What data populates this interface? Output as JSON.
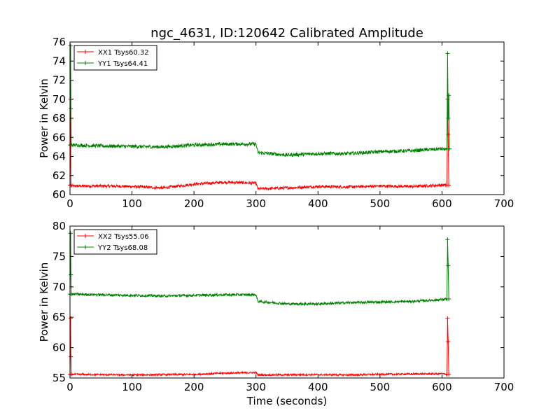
{
  "chart_data": [
    {
      "type": "line",
      "title": "ngc_4631, ID:120642 Calibrated Amplitude",
      "xlabel": "",
      "ylabel": "Power in Kelvin",
      "xlim": [
        0,
        700
      ],
      "ylim": [
        60,
        76
      ],
      "xticks": [
        0,
        100,
        200,
        300,
        400,
        500,
        600,
        700
      ],
      "yticks": [
        60,
        62,
        64,
        66,
        68,
        70,
        72,
        74,
        76
      ],
      "legend_position": "top-left",
      "series": [
        {
          "name": "XX1 Tsys60.32",
          "color": "#ff0000",
          "baseline": [
            [
              2,
              60.9
            ],
            [
              60,
              60.9
            ],
            [
              100,
              60.85
            ],
            [
              150,
              60.7
            ],
            [
              200,
              61.1
            ],
            [
              250,
              61.3
            ],
            [
              300,
              61.2
            ],
            [
              303,
              60.6
            ],
            [
              350,
              60.7
            ],
            [
              400,
              60.85
            ],
            [
              450,
              60.8
            ],
            [
              500,
              60.9
            ],
            [
              550,
              60.85
            ],
            [
              600,
              61.0
            ],
            [
              608,
              61.0
            ]
          ],
          "noise": 0.15,
          "spikes": [
            [
              0,
              61
            ],
            [
              1,
              70.0
            ],
            [
              1.5,
              61
            ],
            [
              608,
              61
            ],
            [
              609,
              70.0
            ],
            [
              610,
              66.3
            ],
            [
              611,
              61
            ]
          ]
        },
        {
          "name": "YY1 Tsys64.41",
          "color": "#008000",
          "baseline": [
            [
              2,
              65.2
            ],
            [
              50,
              65.1
            ],
            [
              100,
              65.05
            ],
            [
              150,
              65.0
            ],
            [
              200,
              65.2
            ],
            [
              250,
              65.3
            ],
            [
              300,
              65.3
            ],
            [
              303,
              64.4
            ],
            [
              350,
              64.15
            ],
            [
              400,
              64.3
            ],
            [
              450,
              64.3
            ],
            [
              500,
              64.5
            ],
            [
              550,
              64.6
            ],
            [
              600,
              64.8
            ],
            [
              608,
              64.7
            ]
          ],
          "noise": 0.18,
          "spikes": [
            [
              0,
              65.2
            ],
            [
              1,
              75.6
            ],
            [
              1.5,
              69.0
            ],
            [
              2,
              65.2
            ],
            [
              608,
              64.8
            ],
            [
              609,
              74.8
            ],
            [
              610,
              68.0
            ],
            [
              611,
              70.4
            ],
            [
              612,
              64.8
            ]
          ]
        }
      ]
    },
    {
      "type": "line",
      "title": "",
      "xlabel": "Time (seconds)",
      "ylabel": "Power in Kelvin",
      "xlim": [
        0,
        700
      ],
      "ylim": [
        55,
        80
      ],
      "xticks": [
        0,
        100,
        200,
        300,
        400,
        500,
        600,
        700
      ],
      "yticks": [
        55,
        60,
        65,
        70,
        75,
        80
      ],
      "legend_position": "top-left",
      "series": [
        {
          "name": "XX2 Tsys55.06",
          "color": "#ff0000",
          "baseline": [
            [
              2,
              55.6
            ],
            [
              100,
              55.5
            ],
            [
              200,
              55.6
            ],
            [
              250,
              55.8
            ],
            [
              300,
              55.9
            ],
            [
              303,
              55.5
            ],
            [
              400,
              55.55
            ],
            [
              450,
              55.5
            ],
            [
              500,
              55.6
            ],
            [
              600,
              55.7
            ],
            [
              608,
              55.6
            ]
          ],
          "noise": 0.15,
          "spikes": [
            [
              0,
              55.6
            ],
            [
              1,
              64.8
            ],
            [
              1.5,
              58.5
            ],
            [
              2,
              55.6
            ],
            [
              608,
              55.6
            ],
            [
              609,
              64.8
            ],
            [
              610,
              61.0
            ],
            [
              611,
              55.6
            ]
          ]
        },
        {
          "name": "YY2 Tsys68.08",
          "color": "#008000",
          "baseline": [
            [
              2,
              68.8
            ],
            [
              50,
              68.7
            ],
            [
              100,
              68.6
            ],
            [
              150,
              68.5
            ],
            [
              200,
              68.6
            ],
            [
              250,
              68.7
            ],
            [
              300,
              68.7
            ],
            [
              303,
              67.6
            ],
            [
              350,
              67.2
            ],
            [
              400,
              67.2
            ],
            [
              450,
              67.4
            ],
            [
              500,
              67.5
            ],
            [
              550,
              67.6
            ],
            [
              600,
              67.9
            ],
            [
              608,
              68.0
            ]
          ],
          "noise": 0.2,
          "spikes": [
            [
              0,
              68.8
            ],
            [
              1,
              78.8
            ],
            [
              1.5,
              72.0
            ],
            [
              2,
              68.8
            ],
            [
              608,
              68.0
            ],
            [
              609,
              77.8
            ],
            [
              610,
              73.5
            ],
            [
              611,
              68.0
            ]
          ]
        }
      ]
    }
  ]
}
